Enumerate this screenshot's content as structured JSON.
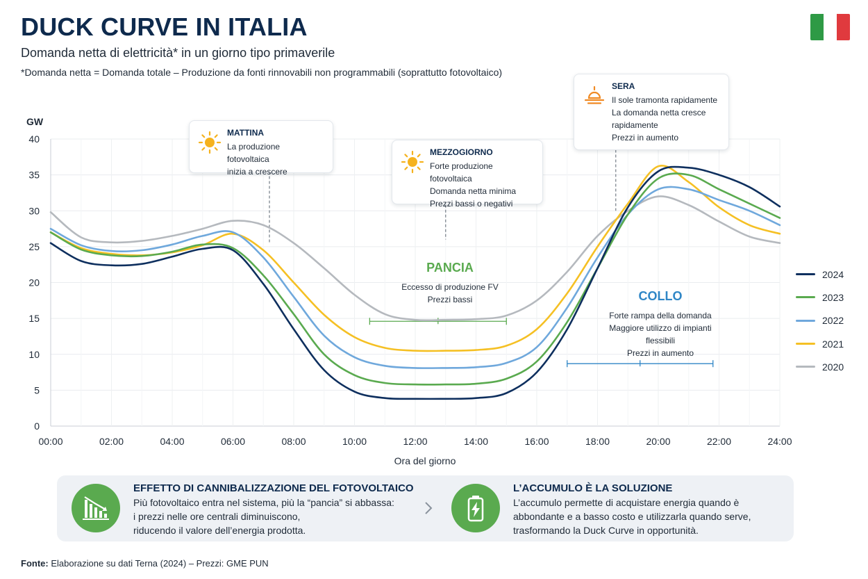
{
  "header": {
    "title": "DUCK CURVE IN ITALIA",
    "subtitle": "Domanda netta di elettricità* in un giorno tipo primaverile",
    "footnote": "*Domanda netta = Domanda totale – Produzione da fonti rinnovabili non programmabili (soprattutto fotovoltaico)"
  },
  "flag_colors": [
    "#2e9a45",
    "#ffffff",
    "#e03a3e"
  ],
  "chart_data": {
    "type": "line",
    "title": "",
    "xlabel": "Ora del giorno",
    "ylabel": "GW",
    "x_ticks": [
      "00:00",
      "02:00",
      "04:00",
      "06:00",
      "08:00",
      "10:00",
      "12:00",
      "14:00",
      "16:00",
      "18:00",
      "20:00",
      "22:00",
      "24:00"
    ],
    "y_ticks": [
      0,
      5,
      10,
      15,
      20,
      25,
      30,
      35,
      40
    ],
    "xlim": [
      0,
      24
    ],
    "ylim": [
      0,
      40
    ],
    "grid": true,
    "legend_position": "right",
    "x": [
      0,
      1,
      2,
      3,
      4,
      5,
      6,
      7,
      8,
      9,
      10,
      11,
      12,
      13,
      14,
      15,
      16,
      17,
      18,
      19,
      20,
      21,
      22,
      23,
      24
    ],
    "series": [
      {
        "name": "2020",
        "color": "#b5b9be",
        "values": [
          29.8,
          26.3,
          25.6,
          25.8,
          26.5,
          27.5,
          28.6,
          28.0,
          25.5,
          22.0,
          18.3,
          15.6,
          14.8,
          14.8,
          14.9,
          15.4,
          17.5,
          21.5,
          26.5,
          30.0,
          32.0,
          30.8,
          28.5,
          26.4,
          25.5
        ]
      },
      {
        "name": "2021",
        "color": "#f5c024",
        "values": [
          27.0,
          24.8,
          24.0,
          23.8,
          24.2,
          25.2,
          26.8,
          24.5,
          20.0,
          15.5,
          12.4,
          10.9,
          10.5,
          10.5,
          10.6,
          11.2,
          13.5,
          18.5,
          25.0,
          31.0,
          36.2,
          34.0,
          30.5,
          28.0,
          26.8
        ]
      },
      {
        "name": "2022",
        "color": "#6fa8dc",
        "values": [
          27.5,
          25.2,
          24.4,
          24.5,
          25.3,
          26.5,
          27.0,
          23.5,
          18.0,
          12.6,
          9.6,
          8.4,
          8.1,
          8.1,
          8.2,
          8.8,
          11.0,
          16.5,
          23.5,
          29.5,
          33.0,
          33.0,
          31.5,
          30.0,
          28.0
        ]
      },
      {
        "name": "2023",
        "color": "#5aaa4f",
        "values": [
          27.0,
          24.6,
          23.8,
          23.7,
          24.3,
          25.3,
          24.8,
          21.0,
          15.6,
          10.0,
          7.1,
          6.0,
          5.8,
          5.8,
          5.9,
          6.6,
          9.0,
          14.5,
          22.0,
          29.5,
          34.5,
          35.0,
          33.0,
          31.0,
          29.0
        ]
      },
      {
        "name": "2024",
        "color": "#0e2f5e",
        "values": [
          25.5,
          23.0,
          22.4,
          22.6,
          23.6,
          24.7,
          24.5,
          19.8,
          13.5,
          7.8,
          4.8,
          3.9,
          3.8,
          3.8,
          3.9,
          4.6,
          7.5,
          13.5,
          22.0,
          30.5,
          35.5,
          36.0,
          35.0,
          33.3,
          30.6
        ]
      }
    ],
    "legend_order": [
      "2024",
      "2023",
      "2022",
      "2021",
      "2020"
    ],
    "annotations": [
      {
        "name": "mattina",
        "title": "MATTINA",
        "lines": [
          "La produzione fotovoltaica",
          "inizia a crescere"
        ],
        "x": 7.2,
        "y_from": 25.5,
        "y_to": 35.5
      },
      {
        "name": "mezzogiorno",
        "title": "MEZZOGIORNO",
        "lines": [
          "Forte produzione fotovoltaica",
          "Domanda netta minima",
          "Prezzi bassi o negativi"
        ],
        "x": 13.0,
        "y_from": 26.0,
        "y_to": 31.5
      },
      {
        "name": "sera",
        "title": "SERA",
        "lines": [
          "Il sole tramonta rapidamente",
          "La domanda netta cresce",
          "rapidamente",
          "Prezzi in aumento"
        ],
        "x": 18.6,
        "y_from": 30.0,
        "y_to": 38.5
      }
    ],
    "zones": [
      {
        "name": "pancia",
        "title": "PANCIA",
        "color": "#5aaa4f",
        "lines": [
          "Eccesso di produzione FV",
          "Prezzi bassi"
        ],
        "x_range": [
          10.5,
          15.0
        ],
        "y": 14.6
      },
      {
        "name": "collo",
        "title": "COLLO",
        "color": "#2f86c6",
        "lines": [
          "Forte rampa della domanda",
          "Maggiore utilizzo di impianti",
          "flessibili",
          "Prezzi in aumento"
        ],
        "x_range": [
          17.0,
          21.8
        ],
        "y": 8.7
      }
    ]
  },
  "bottom": {
    "left": {
      "icon": "declining-bars-icon",
      "title": "EFFETTO DI CANNIBALIZZAZIONE DEL FOTOVOLTAICO",
      "lines": [
        "Più fotovoltaico entra nel sistema, più la “pancia” si abbassa:",
        "i prezzi nelle ore centrali diminuiscono,",
        "riducendo il valore dell’energia prodotta."
      ]
    },
    "chevron": "chevron-right-icon",
    "right": {
      "icon": "battery-icon",
      "title": "L’ACCUMULO È LA SOLUZIONE",
      "lines": [
        "L’accumulo permette di acquistare energia quando è",
        "abbondante e a basso costo e utilizzarla quando serve,",
        "trasformando la Duck Curve in opportunità."
      ]
    }
  },
  "source": {
    "label": "Fonte:",
    "text": " Elaborazione su dati Terna (2024) – Prezzi: GME PUN"
  }
}
